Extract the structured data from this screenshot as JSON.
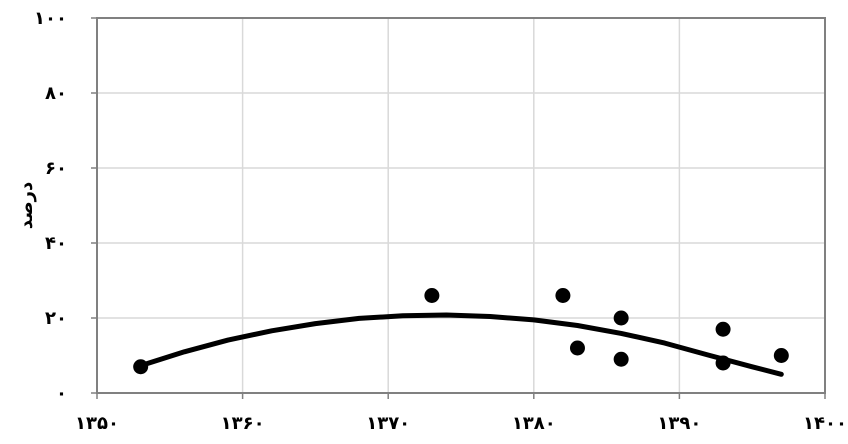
{
  "chart_data": {
    "type": "scatter",
    "title": "",
    "xlabel": "",
    "ylabel": "درصد",
    "xlim": [
      1350,
      1400
    ],
    "ylim": [
      0,
      100
    ],
    "x_ticks": [
      1350,
      1360,
      1370,
      1380,
      1390,
      1400
    ],
    "y_ticks": [
      0,
      20,
      40,
      60,
      80,
      100
    ],
    "x_tick_labels": [
      "۱۳۵۰",
      "۱۳۶۰",
      "۱۳۷۰",
      "۱۳۸۰",
      "۱۳۹۰",
      "۱۴۰۰"
    ],
    "y_tick_labels": [
      "۰",
      "۲۰",
      "۴۰",
      "۶۰",
      "۸۰",
      "۱۰۰"
    ],
    "grid": true,
    "legend": "none",
    "series": [
      {
        "type": "scatter",
        "x": [
          1353,
          1373,
          1382,
          1383,
          1386,
          1386,
          1393,
          1393,
          1397
        ],
        "y": [
          7,
          26,
          26,
          12,
          20,
          9,
          17,
          8,
          10
        ]
      },
      {
        "type": "line",
        "x": [
          1353,
          1356,
          1359,
          1362,
          1365,
          1368,
          1371,
          1374,
          1377,
          1380,
          1383,
          1386,
          1389,
          1392,
          1395,
          1397
        ],
        "y": [
          7.3,
          11.0,
          14.1,
          16.6,
          18.5,
          19.9,
          20.6,
          20.8,
          20.4,
          19.5,
          18.0,
          15.9,
          13.3,
          10.1,
          7.0,
          5.0
        ]
      }
    ],
    "colors": {
      "points": "#000000",
      "trend": "#000000",
      "grid": "#d9d9d9",
      "frame": "#808080"
    }
  }
}
